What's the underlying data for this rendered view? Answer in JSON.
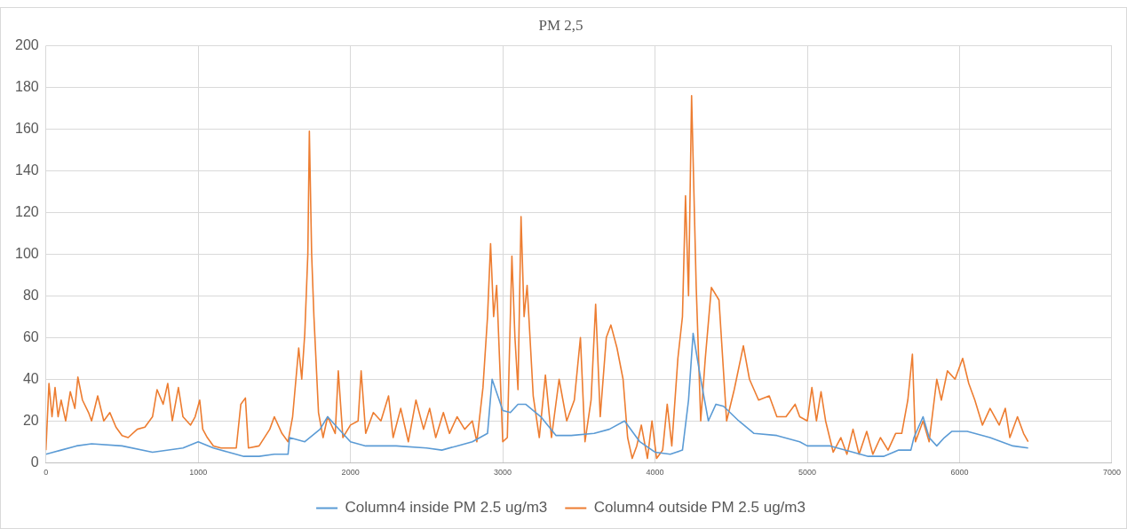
{
  "chart_data": {
    "type": "line",
    "title": "PM 2,5",
    "xlim": [
      0,
      7000
    ],
    "xticks": [
      0,
      1000,
      2000,
      3000,
      4000,
      5000,
      6000,
      7000
    ],
    "ylim": [
      0,
      200
    ],
    "yticks": [
      0,
      20,
      40,
      60,
      80,
      100,
      120,
      140,
      160,
      180,
      200
    ],
    "grid": true,
    "legend": "bottom",
    "marker": "none",
    "line_style": "solid",
    "series": [
      {
        "name": "Column4 inside PM 2.5 ug/m3",
        "color": "#5b9bd5",
        "x": [
          0,
          100,
          200,
          300,
          500,
          700,
          900,
          1000,
          1100,
          1200,
          1300,
          1400,
          1500,
          1590,
          1600,
          1700,
          1800,
          1850,
          1900,
          2000,
          2100,
          2300,
          2500,
          2600,
          2700,
          2800,
          2900,
          2930,
          3000,
          3050,
          3100,
          3150,
          3250,
          3350,
          3450,
          3600,
          3700,
          3800,
          3900,
          4000,
          4100,
          4180,
          4220,
          4250,
          4300,
          4350,
          4400,
          4450,
          4550,
          4650,
          4800,
          4950,
          5000,
          5150,
          5300,
          5400,
          5500,
          5600,
          5680,
          5700,
          5760,
          5800,
          5850,
          5900,
          5950,
          6050,
          6200,
          6350,
          6450
        ],
        "values": [
          4,
          6,
          8,
          9,
          8,
          5,
          7,
          10,
          7,
          5,
          3,
          3,
          4,
          4,
          12,
          10,
          16,
          22,
          18,
          10,
          8,
          8,
          7,
          6,
          8,
          10,
          14,
          40,
          25,
          24,
          28,
          28,
          22,
          13,
          13,
          14,
          16,
          20,
          10,
          5,
          4,
          6,
          30,
          62,
          40,
          20,
          28,
          27,
          20,
          14,
          13,
          10,
          8,
          8,
          5,
          3,
          3,
          6,
          6,
          12,
          22,
          12,
          8,
          12,
          15,
          15,
          12,
          8,
          7
        ]
      },
      {
        "name": "Column4 outside PM 2.5 ug/m3",
        "color": "#ed7d31",
        "x": [
          0,
          20,
          40,
          60,
          80,
          100,
          130,
          160,
          190,
          210,
          240,
          280,
          300,
          340,
          380,
          420,
          460,
          500,
          540,
          600,
          650,
          700,
          730,
          770,
          800,
          830,
          870,
          900,
          950,
          980,
          1010,
          1030,
          1060,
          1100,
          1150,
          1200,
          1250,
          1280,
          1310,
          1330,
          1400,
          1470,
          1500,
          1550,
          1590,
          1620,
          1660,
          1680,
          1700,
          1720,
          1730,
          1745,
          1760,
          1790,
          1820,
          1850,
          1900,
          1920,
          1950,
          2000,
          2050,
          2070,
          2100,
          2150,
          2200,
          2250,
          2280,
          2330,
          2380,
          2430,
          2480,
          2520,
          2560,
          2610,
          2650,
          2700,
          2750,
          2800,
          2830,
          2870,
          2900,
          2920,
          2940,
          2960,
          3000,
          3030,
          3060,
          3080,
          3100,
          3120,
          3140,
          3160,
          3200,
          3240,
          3280,
          3320,
          3370,
          3420,
          3470,
          3510,
          3540,
          3580,
          3610,
          3640,
          3680,
          3710,
          3750,
          3790,
          3820,
          3850,
          3880,
          3910,
          3950,
          3980,
          4010,
          4050,
          4080,
          4110,
          4150,
          4180,
          4200,
          4220,
          4240,
          4270,
          4300,
          4330,
          4370,
          4420,
          4470,
          4520,
          4580,
          4620,
          4680,
          4750,
          4800,
          4860,
          4920,
          4950,
          5000,
          5030,
          5060,
          5090,
          5120,
          5170,
          5220,
          5260,
          5300,
          5340,
          5390,
          5430,
          5480,
          5530,
          5580,
          5620,
          5660,
          5690,
          5710,
          5760,
          5800,
          5850,
          5880,
          5920,
          5970,
          6020,
          6060,
          6100,
          6150,
          6200,
          6260,
          6300,
          6330,
          6380,
          6420,
          6450
        ],
        "values": [
          6,
          38,
          22,
          36,
          22,
          30,
          20,
          34,
          26,
          41,
          30,
          24,
          20,
          32,
          20,
          24,
          17,
          13,
          12,
          16,
          17,
          22,
          35,
          28,
          38,
          20,
          36,
          22,
          18,
          22,
          30,
          16,
          12,
          8,
          7,
          7,
          7,
          28,
          31,
          7,
          8,
          16,
          22,
          14,
          10,
          22,
          55,
          40,
          62,
          100,
          159,
          100,
          70,
          24,
          12,
          22,
          14,
          44,
          12,
          18,
          20,
          44,
          14,
          24,
          20,
          32,
          12,
          26,
          10,
          30,
          16,
          26,
          12,
          24,
          14,
          22,
          16,
          20,
          10,
          36,
          70,
          105,
          70,
          85,
          10,
          12,
          99,
          60,
          35,
          118,
          70,
          85,
          32,
          12,
          42,
          12,
          40,
          20,
          30,
          60,
          10,
          30,
          76,
          22,
          60,
          66,
          55,
          40,
          12,
          2,
          8,
          18,
          2,
          20,
          2,
          6,
          28,
          8,
          50,
          70,
          128,
          80,
          176,
          85,
          20,
          50,
          84,
          78,
          20,
          35,
          56,
          40,
          30,
          32,
          22,
          22,
          28,
          22,
          20,
          36,
          20,
          34,
          20,
          5,
          12,
          4,
          16,
          4,
          15,
          4,
          12,
          6,
          14,
          14,
          30,
          52,
          10,
          20,
          10,
          40,
          30,
          44,
          40,
          50,
          38,
          30,
          18,
          26,
          18,
          26,
          12,
          22,
          14,
          10
        ]
      }
    ]
  }
}
